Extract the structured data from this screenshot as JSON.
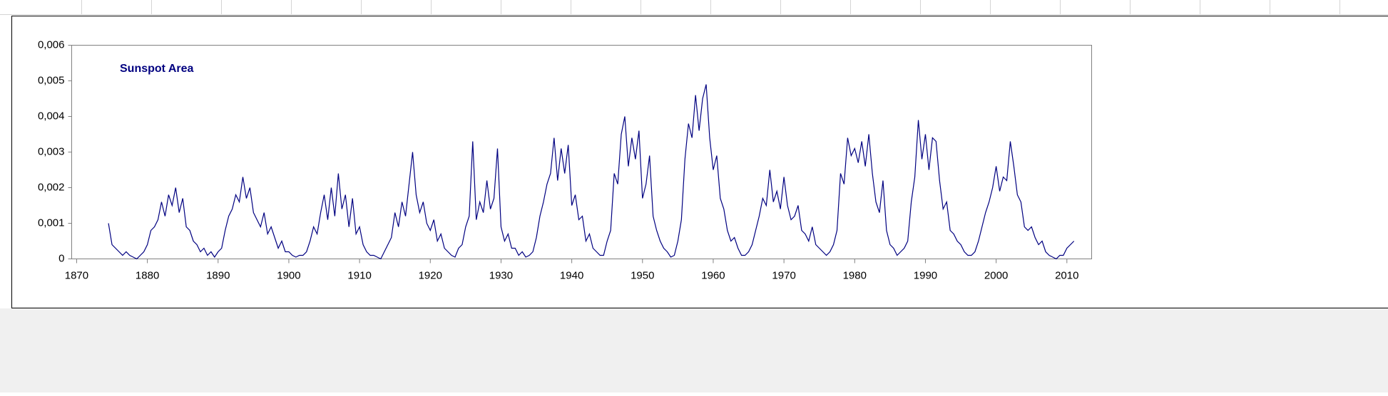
{
  "chart_data": {
    "type": "line",
    "xlim": [
      1869.3,
      2013.5
    ],
    "xticks": [
      1870,
      1880,
      1890,
      1900,
      1910,
      1920,
      1930,
      1940,
      1950,
      1960,
      1970,
      1980,
      1990,
      2000,
      2010
    ],
    "ylim": [
      0,
      0.006
    ],
    "yticks": [
      0,
      {
        "value": 0.001,
        "label": "0,001"
      },
      {
        "value": 0.002,
        "label": "0,002"
      },
      {
        "value": 0.003,
        "label": "0,003"
      },
      {
        "value": 0.004,
        "label": "0,004"
      },
      {
        "value": 0.005,
        "label": "0,005"
      },
      {
        "value": 0.006,
        "label": "0,006"
      }
    ],
    "x": [
      1874.5,
      1875,
      1875.5,
      1876,
      1876.5,
      1877,
      1877.5,
      1878,
      1878.5,
      1879,
      1879.5,
      1880,
      1880.5,
      1881,
      1881.5,
      1882,
      1882.5,
      1883,
      1883.5,
      1884,
      1884.5,
      1885,
      1885.5,
      1886,
      1886.5,
      1887,
      1887.5,
      1888,
      1888.5,
      1889,
      1889.5,
      1890,
      1890.5,
      1891,
      1891.5,
      1892,
      1892.5,
      1893,
      1893.5,
      1894,
      1894.5,
      1895,
      1895.5,
      1896,
      1896.5,
      1897,
      1897.5,
      1898,
      1898.5,
      1899,
      1899.5,
      1900,
      1900.5,
      1901,
      1901.5,
      1902,
      1902.5,
      1903,
      1903.5,
      1904,
      1904.5,
      1905,
      1905.5,
      1906,
      1906.5,
      1907,
      1907.5,
      1908,
      1908.5,
      1909,
      1909.5,
      1910,
      1910.5,
      1911,
      1911.5,
      1912,
      1912.5,
      1913,
      1913.5,
      1914,
      1914.5,
      1915,
      1915.5,
      1916,
      1916.5,
      1917,
      1917.5,
      1918,
      1918.5,
      1919,
      1919.5,
      1920,
      1920.5,
      1921,
      1921.5,
      1922,
      1922.5,
      1923,
      1923.5,
      1924,
      1924.5,
      1925,
      1925.5,
      1926,
      1926.5,
      1927,
      1927.5,
      1928,
      1928.5,
      1929,
      1929.5,
      1930,
      1930.5,
      1931,
      1931.5,
      1932,
      1932.5,
      1933,
      1933.5,
      1934,
      1934.5,
      1935,
      1935.5,
      1936,
      1936.5,
      1937,
      1937.5,
      1938,
      1938.5,
      1939,
      1939.5,
      1940,
      1940.5,
      1941,
      1941.5,
      1942,
      1942.5,
      1943,
      1943.5,
      1944,
      1944.5,
      1945,
      1945.5,
      1946,
      1946.5,
      1947,
      1947.5,
      1948,
      1948.5,
      1949,
      1949.5,
      1950,
      1950.5,
      1951,
      1951.5,
      1952,
      1952.5,
      1953,
      1953.5,
      1954,
      1954.5,
      1955,
      1955.5,
      1956,
      1956.5,
      1957,
      1957.5,
      1958,
      1958.5,
      1959,
      1959.5,
      1960,
      1960.5,
      1961,
      1961.5,
      1962,
      1962.5,
      1963,
      1963.5,
      1964,
      1964.5,
      1965,
      1965.5,
      1966,
      1966.5,
      1967,
      1967.5,
      1968,
      1968.5,
      1969,
      1969.5,
      1970,
      1970.5,
      1971,
      1971.5,
      1972,
      1972.5,
      1973,
      1973.5,
      1974,
      1974.5,
      1975,
      1975.5,
      1976,
      1976.5,
      1977,
      1977.5,
      1978,
      1978.5,
      1979,
      1979.5,
      1980,
      1980.5,
      1981,
      1981.5,
      1982,
      1982.5,
      1983,
      1983.5,
      1984,
      1984.5,
      1985,
      1985.5,
      1986,
      1986.5,
      1987,
      1987.5,
      1988,
      1988.5,
      1989,
      1989.5,
      1990,
      1990.5,
      1991,
      1991.5,
      1992,
      1992.5,
      1993,
      1993.5,
      1994,
      1994.5,
      1995,
      1995.5,
      1996,
      1996.5,
      1997,
      1997.5,
      1998,
      1998.5,
      1999,
      1999.5,
      2000,
      2000.5,
      2001,
      2001.5,
      2002,
      2002.5,
      2003,
      2003.5,
      2004,
      2004.5,
      2005,
      2005.5,
      2006,
      2006.5,
      2007,
      2007.5,
      2008,
      2008.5,
      2009,
      2009.5,
      2010,
      2010.5,
      2011
    ],
    "series": [
      {
        "name": "Sunspot Area",
        "color": "#000080",
        "values": [
          0.001,
          0.0004,
          0.0003,
          0.0002,
          0.0001,
          0.0002,
          0.0001,
          5e-05,
          0,
          0.0001,
          0.0002,
          0.0004,
          0.0008,
          0.0009,
          0.0011,
          0.0016,
          0.0012,
          0.0018,
          0.0015,
          0.002,
          0.0013,
          0.0017,
          0.0009,
          0.0008,
          0.0005,
          0.0004,
          0.0002,
          0.0003,
          0.0001,
          0.0002,
          5e-05,
          0.0002,
          0.0003,
          0.0008,
          0.0012,
          0.0014,
          0.0018,
          0.0016,
          0.0023,
          0.0017,
          0.002,
          0.0013,
          0.0011,
          0.0009,
          0.0013,
          0.0007,
          0.0009,
          0.0006,
          0.0003,
          0.0005,
          0.0002,
          0.0002,
          0.0001,
          5e-05,
          0.0001,
          0.0001,
          0.0002,
          0.0005,
          0.0009,
          0.0007,
          0.0013,
          0.0018,
          0.0011,
          0.002,
          0.0012,
          0.0024,
          0.0014,
          0.0018,
          0.0009,
          0.0017,
          0.0007,
          0.0009,
          0.0004,
          0.0002,
          0.0001,
          0.0001,
          5e-05,
          0,
          0.0002,
          0.0004,
          0.0006,
          0.0013,
          0.0009,
          0.0016,
          0.0012,
          0.0021,
          0.003,
          0.0018,
          0.0013,
          0.0016,
          0.001,
          0.0008,
          0.0011,
          0.0005,
          0.0007,
          0.0003,
          0.0002,
          0.0001,
          5e-05,
          0.0003,
          0.0004,
          0.0009,
          0.0012,
          0.0033,
          0.0011,
          0.0016,
          0.0013,
          0.0022,
          0.0014,
          0.0017,
          0.0031,
          0.0009,
          0.0005,
          0.0007,
          0.0003,
          0.0003,
          0.0001,
          0.0002,
          5e-05,
          0.0001,
          0.0002,
          0.0006,
          0.0012,
          0.0016,
          0.0021,
          0.0024,
          0.0034,
          0.0022,
          0.0031,
          0.0024,
          0.0032,
          0.0015,
          0.0018,
          0.0011,
          0.0012,
          0.0005,
          0.0007,
          0.0003,
          0.0002,
          0.0001,
          0.0001,
          0.0005,
          0.0008,
          0.0024,
          0.0021,
          0.0035,
          0.004,
          0.0026,
          0.0034,
          0.0028,
          0.0036,
          0.0017,
          0.0021,
          0.0029,
          0.0012,
          0.0008,
          0.0005,
          0.0003,
          0.0002,
          5e-05,
          0.0001,
          0.0005,
          0.0011,
          0.0028,
          0.0038,
          0.0034,
          0.0046,
          0.0036,
          0.0045,
          0.0049,
          0.0034,
          0.0025,
          0.0029,
          0.0017,
          0.0014,
          0.0008,
          0.0005,
          0.0006,
          0.0003,
          0.0001,
          0.0001,
          0.0002,
          0.0004,
          0.0008,
          0.0012,
          0.0017,
          0.0015,
          0.0025,
          0.0016,
          0.0019,
          0.0014,
          0.0023,
          0.0015,
          0.0011,
          0.0012,
          0.0015,
          0.0008,
          0.0007,
          0.0005,
          0.0009,
          0.0004,
          0.0003,
          0.0002,
          0.0001,
          0.0002,
          0.0004,
          0.0008,
          0.0024,
          0.0021,
          0.0034,
          0.0029,
          0.0031,
          0.0027,
          0.0033,
          0.0026,
          0.0035,
          0.0024,
          0.0016,
          0.0013,
          0.0022,
          0.0008,
          0.0004,
          0.0003,
          0.0001,
          0.0002,
          0.0003,
          0.0005,
          0.0016,
          0.0023,
          0.0039,
          0.0028,
          0.0035,
          0.0025,
          0.0034,
          0.0033,
          0.0022,
          0.0014,
          0.0016,
          0.0008,
          0.0007,
          0.0005,
          0.0004,
          0.0002,
          0.0001,
          0.0001,
          0.0002,
          0.0005,
          0.0009,
          0.0013,
          0.0016,
          0.002,
          0.0026,
          0.0019,
          0.0023,
          0.0022,
          0.0033,
          0.0026,
          0.0018,
          0.0016,
          0.0009,
          0.0008,
          0.0009,
          0.0006,
          0.0004,
          0.0005,
          0.0002,
          0.0001,
          5e-05,
          0,
          0.0001,
          0.0001,
          0.0003,
          0.0004,
          0.0005
        ]
      }
    ]
  }
}
